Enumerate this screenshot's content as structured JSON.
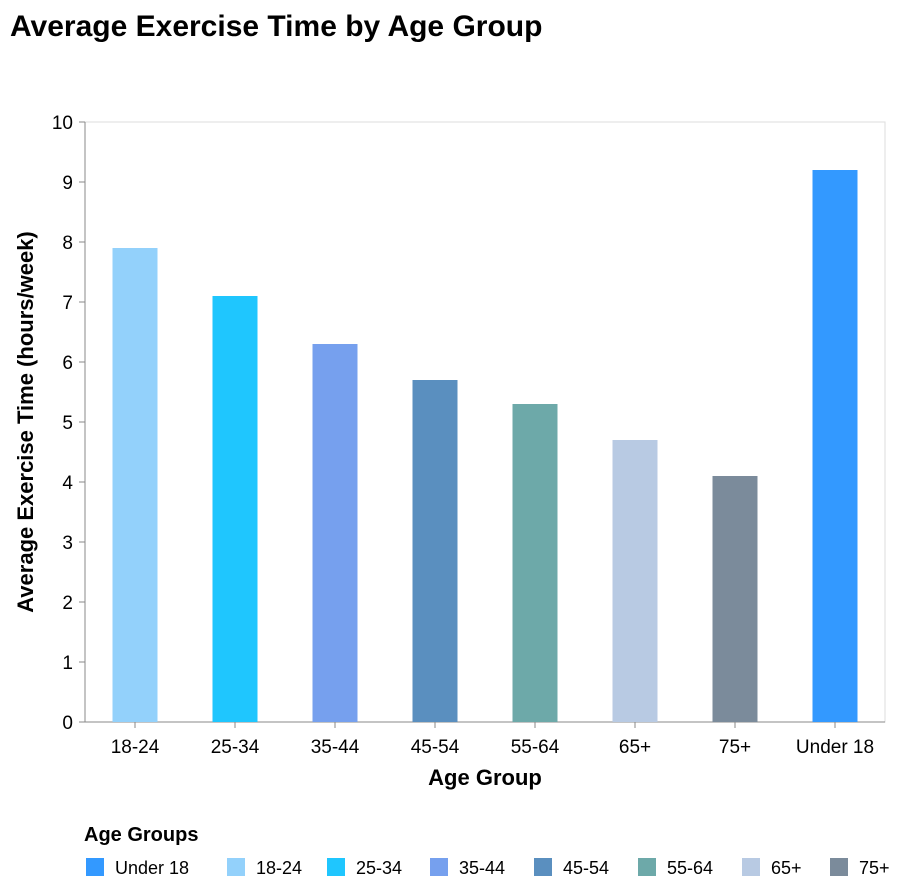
{
  "chart_data": {
    "type": "bar",
    "title": "Average Exercise Time by Age Group",
    "xlabel": "Age Group",
    "ylabel": "Average Exercise Time (hours/week)",
    "ylim": [
      0,
      10
    ],
    "yticks": [
      0,
      1,
      2,
      3,
      4,
      5,
      6,
      7,
      8,
      9,
      10
    ],
    "categories": [
      "18-24",
      "25-34",
      "35-44",
      "45-54",
      "55-64",
      "65+",
      "75+",
      "Under 18"
    ],
    "values": [
      7.9,
      7.1,
      6.3,
      5.7,
      5.3,
      4.7,
      4.1,
      9.2
    ],
    "colors": [
      "#93d1fb",
      "#1fc6fe",
      "#76a0ee",
      "#5a8fbf",
      "#6da9a9",
      "#b8cae3",
      "#7b8b9b",
      "#3399ff"
    ],
    "grid": false,
    "legend": {
      "title": "Age Groups",
      "placement": "bottom-left",
      "entries": [
        {
          "label": "Under 18",
          "color": "#3399ff"
        },
        {
          "label": "18-24",
          "color": "#93d1fb"
        },
        {
          "label": "25-34",
          "color": "#1fc6fe"
        },
        {
          "label": "35-44",
          "color": "#76a0ee"
        },
        {
          "label": "45-54",
          "color": "#5a8fbf"
        },
        {
          "label": "55-64",
          "color": "#6da9a9"
        },
        {
          "label": "65+",
          "color": "#b8cae3"
        },
        {
          "label": "75+",
          "color": "#7b8b9b"
        }
      ]
    }
  }
}
